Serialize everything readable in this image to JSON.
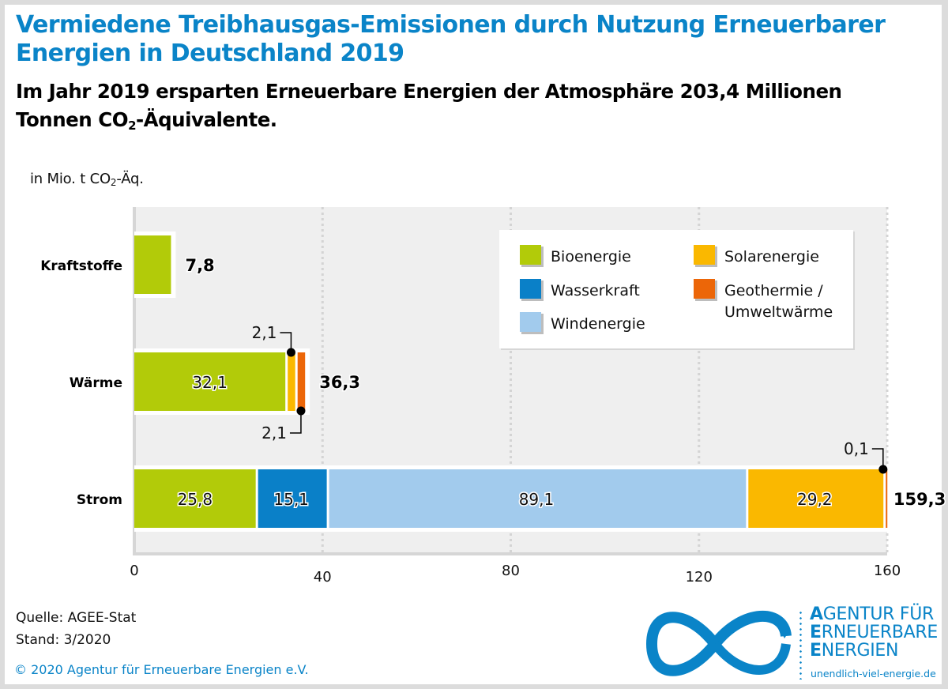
{
  "header": {
    "title_line1": "Vermiedene Treibhausgas-Emissionen durch Nutzung Erneuerbarer",
    "title_line2": "Energien in Deutschland 2019",
    "subtitle_line1": "Im Jahr 2019 ersparten Erneuerbare Energien der Atmosphäre 203,4 Millionen",
    "subtitle_line2_pre": "Tonnen CO",
    "subtitle_line2_sub": "2",
    "subtitle_line2_post": "-Äquivalente."
  },
  "unit_label": {
    "pre": "in Mio. t CO",
    "sub": "2",
    "post": "-Äq."
  },
  "footer": {
    "source": "Quelle: AGEE-Stat",
    "date": "Stand: 3/2020",
    "copyright": "© 2020 Agentur für Erneuerbare Energien e.V."
  },
  "logo": {
    "line1_initial": "A",
    "line1_rest": "GENTUR FÜR",
    "line2_initial": "E",
    "line2_rest": "RNEUERBARE",
    "line3_initial": "E",
    "line3_rest": "NERGIEN",
    "url": "unendlich-viel-energie.de",
    "color": "#0a84c8"
  },
  "chart_data": {
    "type": "bar",
    "orientation": "horizontal",
    "stacked": true,
    "title": "Vermiedene Treibhausgas-Emissionen durch Nutzung Erneuerbarer Energien in Deutschland 2019",
    "xlabel": "",
    "ylabel": "in Mio. t CO2-Äq.",
    "xlim": [
      0,
      160
    ],
    "xticks": [
      0,
      40,
      80,
      120,
      160
    ],
    "xtick_labels": [
      "0",
      "40",
      "80",
      "120",
      "160"
    ],
    "grid": true,
    "legend_position": "top-right",
    "categories": [
      "Kraftstoffe",
      "Wärme",
      "Strom"
    ],
    "series": [
      {
        "name": "Bioenergie",
        "color": "#b2cb09",
        "values": [
          7.8,
          32.1,
          25.8
        ]
      },
      {
        "name": "Wasserkraft",
        "color": "#0a80c8",
        "values": [
          0,
          0,
          15.1
        ]
      },
      {
        "name": "Windenergie",
        "color": "#a2cbed",
        "values": [
          0,
          0,
          89.1
        ]
      },
      {
        "name": "Solarenergie",
        "color": "#fab800",
        "values": [
          0,
          2.1,
          29.2
        ]
      },
      {
        "name": "Geothermie / Umweltwärme",
        "color": "#ec6608",
        "values": [
          0,
          2.1,
          0.1
        ]
      }
    ],
    "totals": [
      7.8,
      36.3,
      159.3
    ],
    "total_labels": [
      "7,8",
      "36,3",
      "159,3"
    ],
    "segment_labels": [
      [
        "",
        "",
        "",
        "",
        ""
      ],
      [
        "32,1",
        "",
        "",
        "2,1",
        "2,1"
      ],
      [
        "25,8",
        "15,1",
        "89,1",
        "29,2",
        "0,1"
      ]
    ],
    "legend": {
      "left_column": [
        "Bioenergie",
        "Wasserkraft",
        "Windenergie"
      ],
      "right_column": [
        "Solarenergie",
        "Geothermie /",
        "Umweltwärme"
      ]
    }
  }
}
